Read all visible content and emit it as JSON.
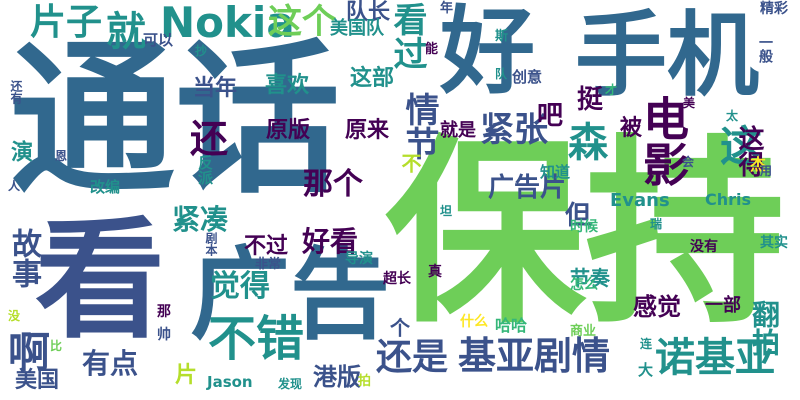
{
  "palette": {
    "dark_purple": "#440154",
    "indigo": "#3b528b",
    "blue": "#31688e",
    "teal": "#21918c",
    "sea_green": "#35b779",
    "light_green": "#6ece58",
    "lime": "#b5de2b",
    "yellow": "#fde725"
  },
  "words": [
    {
      "id": "w_tonghua",
      "text": "通话",
      "color": "blue"
    },
    {
      "id": "w_baochi",
      "text": "保持",
      "color": "light_green"
    },
    {
      "id": "w_kan",
      "text": "看",
      "color": "indigo"
    },
    {
      "id": "w_guanggao",
      "text": "广告",
      "color": "blue"
    },
    {
      "id": "w_shouji",
      "text": "手机",
      "color": "blue"
    },
    {
      "id": "w_hao",
      "text": "好",
      "color": "blue"
    },
    {
      "id": "w_jiuaju",
      "text": "就",
      "color": "teal"
    },
    {
      "id": "w_nokia",
      "text": "Nokia",
      "color": "teal"
    },
    {
      "id": "w_pianzi",
      "text": "片子",
      "color": "teal"
    },
    {
      "id": "w_zhege",
      "text": "这个",
      "color": "light_green"
    },
    {
      "id": "w_duizhang",
      "text": "队长",
      "color": "indigo"
    },
    {
      "id": "w_kanguo",
      "text": "看过",
      "color": "teal"
    },
    {
      "id": "w_dianying",
      "text": "电影",
      "color": "dark_purple"
    },
    {
      "id": "w_sen",
      "text": "森",
      "color": "teal"
    },
    {
      "id": "w_zhe",
      "text": "这",
      "color": "teal"
    },
    {
      "id": "w_huan",
      "text": "还",
      "color": "dark_purple"
    },
    {
      "id": "w_jinzhang",
      "text": "紧张",
      "color": "indigo"
    },
    {
      "id": "w_ba",
      "text": "吧",
      "color": "dark_purple"
    },
    {
      "id": "w_qingjie",
      "text": "情节",
      "color": "indigo"
    },
    {
      "id": "w_buchuo",
      "text": "不错",
      "color": "teal"
    },
    {
      "id": "w_jiuyajuqing",
      "text": "基亚剧情",
      "color": "indigo"
    },
    {
      "id": "w_nuojiya",
      "text": "诺基亚",
      "color": "teal"
    },
    {
      "id": "w_haishi",
      "text": "还是",
      "color": "indigo"
    },
    {
      "id": "w_juede",
      "text": "觉得",
      "color": "teal"
    },
    {
      "id": "w_a",
      "text": "啊",
      "color": "indigo"
    },
    {
      "id": "w_youdian",
      "text": "有点",
      "color": "indigo"
    },
    {
      "id": "w_gushi",
      "text": "故事",
      "color": "indigo"
    },
    {
      "id": "w_jincou",
      "text": "紧凑",
      "color": "teal"
    },
    {
      "id": "w_haokan",
      "text": "好看",
      "color": "dark_purple"
    },
    {
      "id": "w_nage",
      "text": "那个",
      "color": "dark_purple"
    },
    {
      "id": "w_guanggaopian",
      "text": "广告片",
      "color": "indigo"
    },
    {
      "id": "w_dan",
      "text": "但",
      "color": "indigo"
    },
    {
      "id": "w_fanpai",
      "text": "翻拍",
      "color": "teal"
    },
    {
      "id": "w_zhengde",
      "text": "这得",
      "color": "dark_purple"
    },
    {
      "id": "w_ting",
      "text": "挺",
      "color": "dark_purple"
    },
    {
      "id": "w_bei",
      "text": "被",
      "color": "dark_purple"
    },
    {
      "id": "w_ganjue",
      "text": "感觉",
      "color": "dark_purple"
    },
    {
      "id": "w_gangban",
      "text": "港版",
      "color": "indigo"
    },
    {
      "id": "w_meiguo",
      "text": "美国",
      "color": "indigo"
    },
    {
      "id": "w_yuanban",
      "text": "原版",
      "color": "dark_purple"
    },
    {
      "id": "w_yuanlai",
      "text": "原来",
      "color": "dark_purple"
    },
    {
      "id": "w_xihuan",
      "text": "喜欢",
      "color": "teal"
    },
    {
      "id": "w_zhebu",
      "text": "这部",
      "color": "teal"
    },
    {
      "id": "w_dangnian",
      "text": "当年",
      "color": "indigo"
    },
    {
      "id": "w_buguo",
      "text": "不过",
      "color": "dark_purple"
    },
    {
      "id": "w_jiushi",
      "text": "就是",
      "color": "dark_purple"
    },
    {
      "id": "w_meiguodui",
      "text": "美国队",
      "color": "teal"
    },
    {
      "id": "w_jiezou",
      "text": "节奏",
      "color": "teal"
    },
    {
      "id": "w_evans",
      "text": "Evans",
      "color": "teal"
    },
    {
      "id": "w_chris",
      "text": "Chris",
      "color": "teal"
    },
    {
      "id": "w_yibu",
      "text": "一部",
      "color": "dark_purple"
    },
    {
      "id": "w_ge",
      "text": "个",
      "color": "indigo"
    },
    {
      "id": "w_pian",
      "text": "片",
      "color": "lime"
    },
    {
      "id": "w_jason",
      "text": "Jason",
      "color": "teal"
    },
    {
      "id": "w_da",
      "text": "大",
      "color": "teal"
    },
    {
      "id": "w_yan",
      "text": "演",
      "color": "teal"
    },
    {
      "id": "w_gaibian",
      "text": "改编",
      "color": "teal"
    },
    {
      "id": "w_fanpai2",
      "text": "反派",
      "color": "teal"
    },
    {
      "id": "w_keyi",
      "text": "可以",
      "color": "indigo"
    },
    {
      "id": "w_chuangyi",
      "text": "创意",
      "color": "indigo"
    },
    {
      "id": "w_zhidao",
      "text": "知道",
      "color": "teal"
    },
    {
      "id": "w_juben",
      "text": "剧本",
      "color": "indigo"
    },
    {
      "id": "w_feichang",
      "text": "非常",
      "color": "indigo"
    },
    {
      "id": "w_daoyan",
      "text": "导演",
      "color": "teal"
    },
    {
      "id": "w_chaochang",
      "text": "超长",
      "color": "dark_purple"
    },
    {
      "id": "w_zhen",
      "text": "真",
      "color": "dark_purple"
    },
    {
      "id": "w_shihou",
      "text": "时候",
      "color": "sea_green"
    },
    {
      "id": "w_zenme",
      "text": "怎么",
      "color": "sea_green"
    },
    {
      "id": "w_meiyou",
      "text": "没有",
      "color": "dark_purple"
    },
    {
      "id": "w_qishi",
      "text": "其实",
      "color": "teal"
    },
    {
      "id": "w_jingcai",
      "text": "精彩",
      "color": "indigo"
    },
    {
      "id": "w_yiban",
      "text": "一般",
      "color": "indigo"
    },
    {
      "id": "w_jie",
      "text": "杰",
      "color": "yellow"
    },
    {
      "id": "w_shenme",
      "text": "什么",
      "color": "yellow"
    },
    {
      "id": "w_haha",
      "text": "哈哈",
      "color": "sea_green"
    },
    {
      "id": "w_shangye",
      "text": "商业",
      "color": "light_green"
    },
    {
      "id": "w_fasheng",
      "text": "发现",
      "color": "teal"
    },
    {
      "id": "w_pai",
      "text": "拍",
      "color": "lime"
    },
    {
      "id": "w_lian",
      "text": "连",
      "color": "teal"
    },
    {
      "id": "w_neng",
      "text": "能",
      "color": "dark_purple"
    },
    {
      "id": "w_nian",
      "text": "年",
      "color": "indigo"
    },
    {
      "id": "w_si",
      "text": "斯",
      "color": "teal"
    },
    {
      "id": "w_dui",
      "text": "队",
      "color": "teal"
    },
    {
      "id": "w_cai",
      "text": "才",
      "color": "sea_green"
    },
    {
      "id": "w_mei",
      "text": "美",
      "color": "dark_purple"
    },
    {
      "id": "w_tai",
      "text": "太",
      "color": "teal"
    },
    {
      "id": "w_hui",
      "text": "会",
      "color": "indigo"
    },
    {
      "id": "w_yong",
      "text": "用",
      "color": "indigo"
    },
    {
      "id": "w_chao",
      "text": "抄",
      "color": "teal"
    },
    {
      "id": "w_huanyou",
      "text": "还有",
      "color": "indigo"
    },
    {
      "id": "w_en",
      "text": "恩",
      "color": "indigo"
    },
    {
      "id": "w_ren",
      "text": "人",
      "color": "indigo"
    },
    {
      "id": "w_tan",
      "text": "坦",
      "color": "teal"
    },
    {
      "id": "w_rui",
      "text": "瑞",
      "color": "teal"
    },
    {
      "id": "w_na",
      "text": "那",
      "color": "dark_purple"
    },
    {
      "id": "w_shuai",
      "text": "帅",
      "color": "indigo"
    },
    {
      "id": "w_bi",
      "text": "比",
      "color": "light_green"
    },
    {
      "id": "w_mei2",
      "text": "没",
      "color": "lime"
    },
    {
      "id": "w_bu",
      "text": "不",
      "color": "lime"
    }
  ]
}
